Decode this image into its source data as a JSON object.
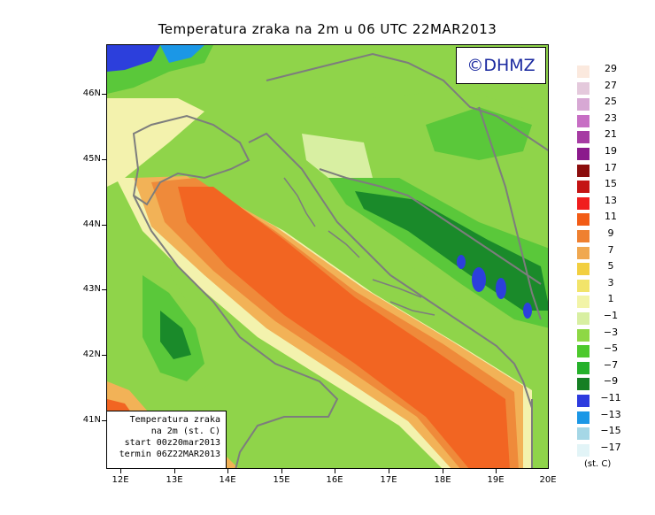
{
  "title": "Temperatura zraka na 2m u 06 UTC 22MAR2013",
  "logo": "©DHMZ",
  "info": {
    "line1": "Temperatura zraka",
    "line2": "na 2m (st. C)",
    "line3": "start 00z20mar2013",
    "line4": "termin 06Z22MAR2013"
  },
  "lat_labels": [
    "46N",
    "45N",
    "44N",
    "43N",
    "42N",
    "41N"
  ],
  "lon_labels": [
    "12E",
    "13E",
    "14E",
    "15E",
    "16E",
    "17E",
    "18E",
    "19E",
    "20E"
  ],
  "legend": {
    "unit": "(st. C)",
    "labels": [
      "29",
      "27",
      "25",
      "23",
      "21",
      "19",
      "17",
      "15",
      "13",
      "11",
      "9",
      "7",
      "5",
      "3",
      "1",
      "−1",
      "−3",
      "−5",
      "−7",
      "−9",
      "−11",
      "−13",
      "−15",
      "−17"
    ],
    "colors": [
      "#fbe9de",
      "#e4c9dc",
      "#d7a8d4",
      "#c76ec4",
      "#a63ba3",
      "#8b1a8c",
      "#8b0d0d",
      "#c41414",
      "#f01e1e",
      "#f25c16",
      "#ef8030",
      "#f0a850",
      "#f2cf40",
      "#f2e46a",
      "#f2f4a8",
      "#d8efa2",
      "#8ed845",
      "#4dc92c",
      "#25b12a",
      "#167f24",
      "#2d3bde",
      "#1b97e6",
      "#a5d7e6",
      "#e2f4f7"
    ]
  },
  "map_colors": {
    "sea_warm": "#f26522",
    "sea_mild": "#ef8a3a",
    "coast_warm": "#f2b257",
    "coast_pale": "#f3f2ad",
    "land_light": "#d8efa2",
    "land_green": "#8fd44a",
    "land_mid": "#5ac83a",
    "land_dark": "#1a8a2a",
    "land_cold": "#2c3fdc",
    "border": "#7d7d7d",
    "hot": "#e02018"
  }
}
